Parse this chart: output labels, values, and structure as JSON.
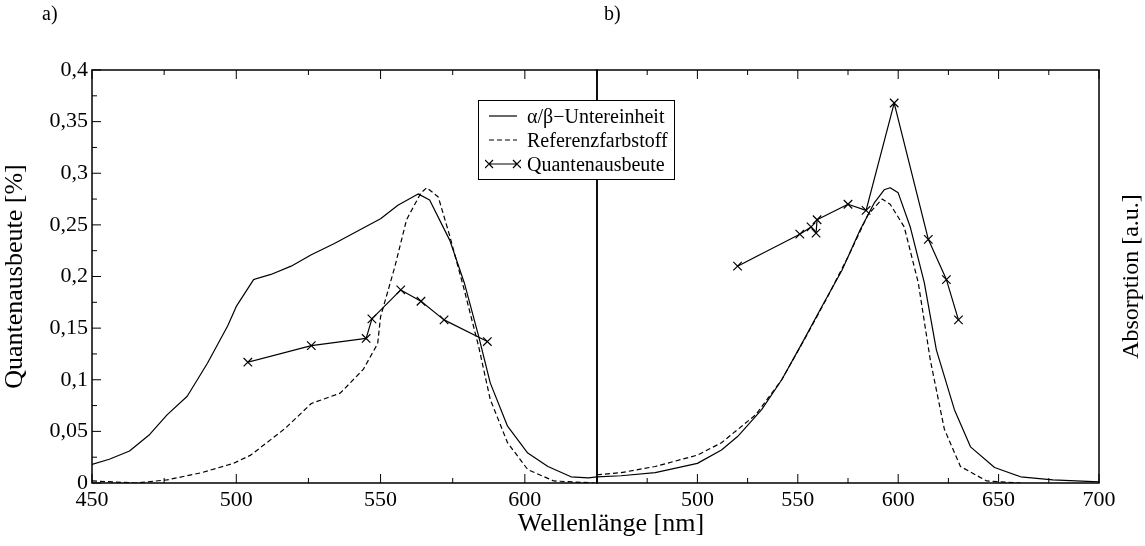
{
  "chart_data": [
    {
      "type": "line",
      "title": "a)",
      "xlabel": "Wellenlänge [nm]",
      "ylabel": "Quantenausbeute [%]",
      "legend": "top right",
      "xlim": [
        450,
        625
      ],
      "ylim": [
        0,
        0.4
      ],
      "xticks": [
        450,
        {
          "value": 475,
          "label": null
        },
        500,
        {
          "value": 525,
          "label": null
        },
        550,
        {
          "value": 575,
          "label": null
        },
        600
      ],
      "yticks": [
        {
          "value": 0,
          "label": "0"
        },
        {
          "value": 0.025,
          "label": null
        },
        {
          "value": 0.05,
          "label": "0,05"
        },
        {
          "value": 0.075,
          "label": null
        },
        {
          "value": 0.1,
          "label": "0,1"
        },
        {
          "value": 0.125,
          "label": null
        },
        {
          "value": 0.15,
          "label": "0,15"
        },
        {
          "value": 0.175,
          "label": null
        },
        {
          "value": 0.2,
          "label": "0,2"
        },
        {
          "value": 0.225,
          "label": null
        },
        {
          "value": 0.25,
          "label": "0,25"
        },
        {
          "value": 0.275,
          "label": null
        },
        {
          "value": 0.3,
          "label": "0,3"
        },
        {
          "value": 0.325,
          "label": null
        },
        {
          "value": 0.35,
          "label": "0,35"
        },
        {
          "value": 0.375,
          "label": null
        },
        {
          "value": 0.4,
          "label": "0,4"
        }
      ],
      "series": [
        {
          "name": "α/β−Untereinheit",
          "color": "#000000",
          "line_style": "solid",
          "marker": "none",
          "x": [
            450,
            456,
            463,
            470,
            476,
            483,
            490,
            497,
            500,
            506,
            512,
            519,
            526,
            534,
            544,
            550,
            556,
            563,
            567,
            574,
            579,
            584,
            588,
            594,
            601,
            608,
            616,
            622,
            625
          ],
          "values": [
            0.018,
            0.023,
            0.031,
            0.047,
            0.066,
            0.084,
            0.116,
            0.152,
            0.171,
            0.197,
            0.202,
            0.21,
            0.221,
            0.232,
            0.247,
            0.256,
            0.269,
            0.28,
            0.274,
            0.235,
            0.194,
            0.142,
            0.097,
            0.055,
            0.029,
            0.016,
            0.006,
            0.005,
            0.006
          ]
        },
        {
          "name": "Referenzfarbstoff",
          "color": "#000000",
          "line_style": "dashed",
          "marker": "none",
          "x": [
            450,
            465,
            476,
            488,
            499,
            505,
            517,
            526,
            536,
            544,
            549,
            550,
            555,
            559,
            564,
            566,
            570,
            574,
            579,
            584,
            588,
            594,
            601,
            610,
            624
          ],
          "values": [
            0.002,
            0,
            0.003,
            0.01,
            0.019,
            0.027,
            0.053,
            0.077,
            0.087,
            0.11,
            0.135,
            0.161,
            0.21,
            0.255,
            0.281,
            0.286,
            0.277,
            0.239,
            0.187,
            0.132,
            0.081,
            0.039,
            0.013,
            0.002,
            0
          ]
        },
        {
          "name": "Quantenausbeute",
          "color": "#000000",
          "line_style": "solid",
          "marker": "cross",
          "x": [
            504,
            526,
            545,
            547,
            557,
            564,
            572,
            587
          ],
          "values": [
            0.117,
            0.133,
            0.14,
            0.159,
            0.187,
            0.176,
            0.158,
            0.137
          ]
        }
      ]
    },
    {
      "type": "line",
      "title": "b)",
      "y2label": "Absorption [a.u.]",
      "tick_labels": "x",
      "xlim": [
        450,
        700
      ],
      "ylim": [
        0,
        0.4
      ],
      "xticks": [
        {
          "value": 450,
          "label": null
        },
        {
          "value": 475,
          "label": null
        },
        500,
        {
          "value": 525,
          "label": null
        },
        550,
        {
          "value": 575,
          "label": null
        },
        600,
        {
          "value": 625,
          "label": null
        },
        650,
        {
          "value": 675,
          "label": null
        },
        700
      ],
      "series": [
        {
          "color": "#000000",
          "line_style": "solid",
          "marker": "none",
          "x": [
            450,
            462,
            479,
            500,
            512,
            520,
            532,
            542,
            552,
            562,
            572,
            581,
            588,
            593,
            596,
            600,
            606,
            613,
            619,
            628,
            636,
            648,
            661,
            677,
            700
          ],
          "values": [
            0.006,
            0.007,
            0.01,
            0.019,
            0.032,
            0.045,
            0.071,
            0.1,
            0.135,
            0.171,
            0.206,
            0.245,
            0.271,
            0.284,
            0.286,
            0.281,
            0.248,
            0.194,
            0.129,
            0.071,
            0.035,
            0.015,
            0.006,
            0.003,
            0.001
          ]
        },
        {
          "color": "#000000",
          "line_style": "dashed",
          "marker": "none",
          "x": [
            450,
            462,
            479,
            500,
            512,
            529,
            542,
            555,
            565,
            575,
            585,
            592,
            596,
            603,
            610,
            616,
            623,
            631,
            644,
            661
          ],
          "values": [
            0.008,
            0.01,
            0.016,
            0.027,
            0.039,
            0.066,
            0.1,
            0.145,
            0.181,
            0.219,
            0.26,
            0.275,
            0.27,
            0.248,
            0.194,
            0.119,
            0.052,
            0.016,
            0.002,
            0
          ]
        },
        {
          "color": "#000000",
          "line_style": "solid",
          "marker": "cross",
          "x": [
            520,
            551,
            556.6,
            559.1,
            559.6,
            575,
            584,
            598,
            615,
            624,
            630
          ],
          "values": [
            0.21,
            0.241,
            0.248,
            0.242,
            0.255,
            0.27,
            0.264,
            0.368,
            0.236,
            0.197,
            0.158
          ]
        }
      ]
    }
  ]
}
